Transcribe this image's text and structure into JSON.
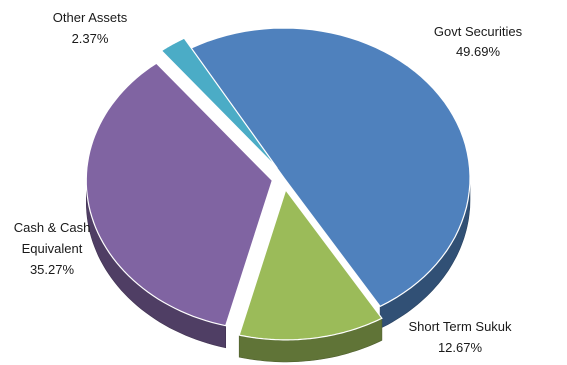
{
  "chart_data": {
    "type": "pie",
    "three_d": true,
    "slices": [
      {
        "name": "Govt Securities",
        "value": 49.69,
        "value_label": "49.69%",
        "color": "#4f81bd",
        "exploded": false
      },
      {
        "name": "Short Term Sukuk",
        "value": 12.67,
        "value_label": "12.67%",
        "color": "#9bbb59",
        "exploded": true
      },
      {
        "name": "Cash & Cash Equivalent",
        "value": 35.27,
        "value_label": "35.27%",
        "color": "#8064a2",
        "exploded": true
      },
      {
        "name": "Other Assets",
        "value": 2.37,
        "value_label": "2.37%",
        "color": "#4bacc6",
        "exploded": true
      }
    ],
    "labels": {
      "govt": {
        "line1": "Govt Securities",
        "line2": "49.69%"
      },
      "sukuk": {
        "line1": "Short Term Sukuk",
        "line2": "12.67%"
      },
      "cash": {
        "line1": "Cash & Cash",
        "line2": "Equivalent",
        "line3": "35.27%"
      },
      "other": {
        "line1": "Other Assets",
        "line2": "2.37%"
      }
    },
    "legend": "none"
  }
}
